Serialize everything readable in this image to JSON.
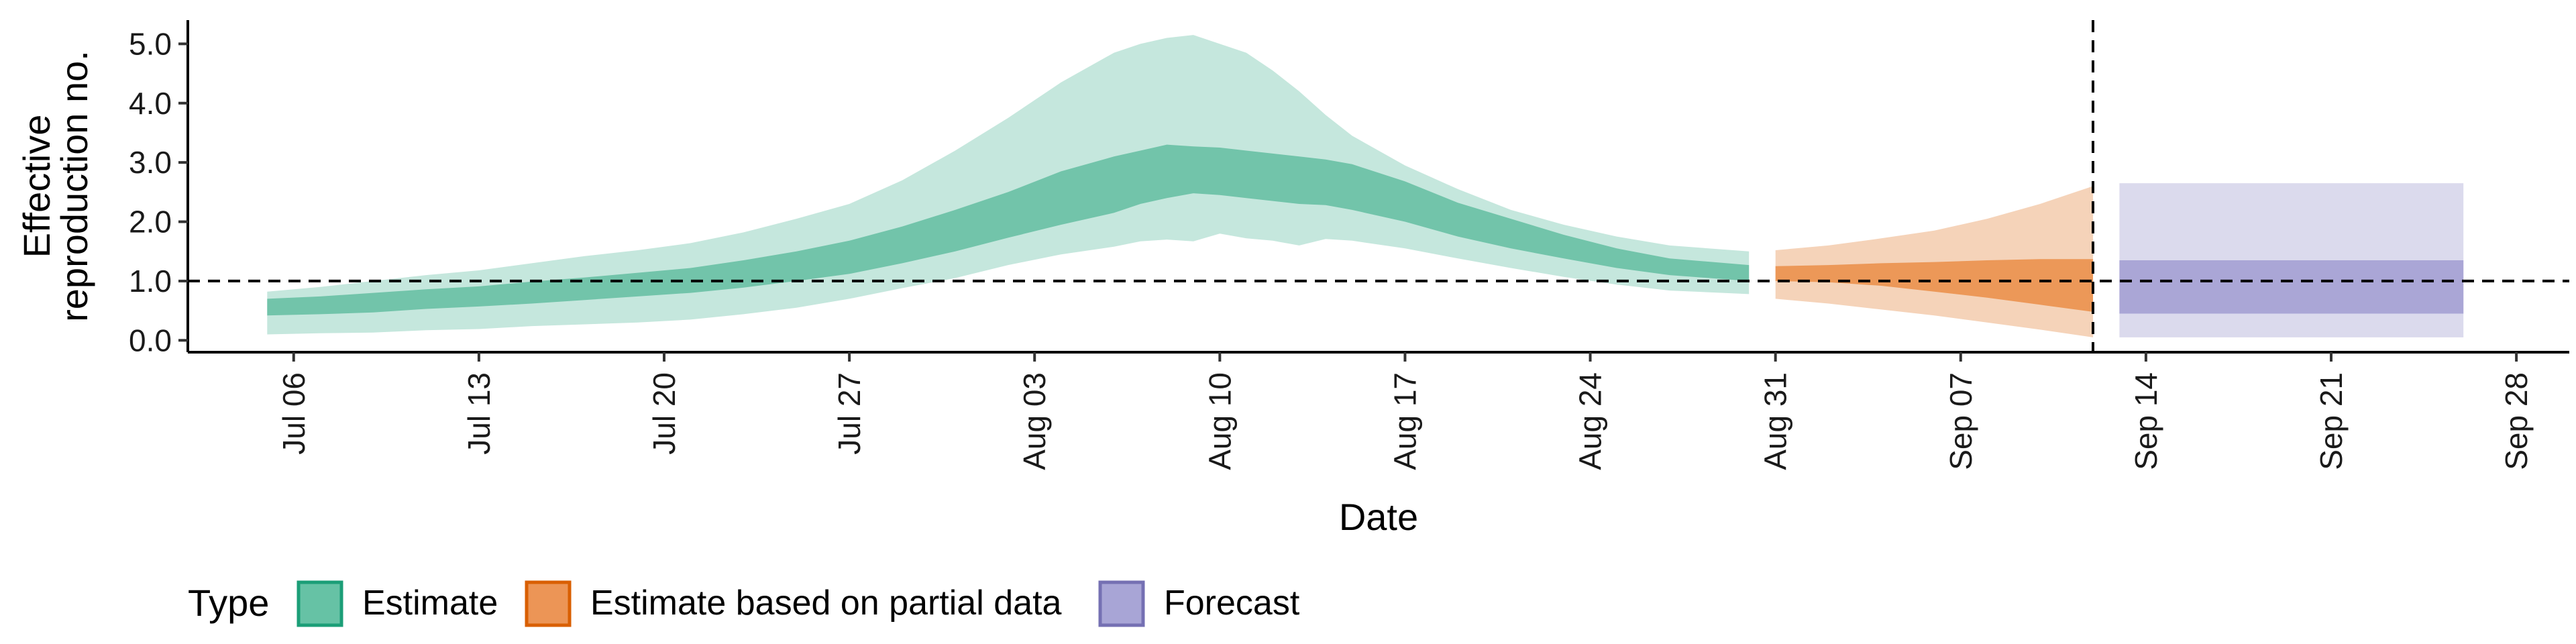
{
  "chart_data": {
    "type": "area",
    "xlabel": "Date",
    "ylabel": [
      "Effective",
      "reproduction no."
    ],
    "ylim": [
      -0.2,
      5.4
    ],
    "xlim": [
      "2020-07-02",
      "2020-09-30"
    ],
    "x_ticks": [
      {
        "date": "2020-07-06",
        "label": "Jul 06"
      },
      {
        "date": "2020-07-13",
        "label": "Jul 13"
      },
      {
        "date": "2020-07-20",
        "label": "Jul 20"
      },
      {
        "date": "2020-07-27",
        "label": "Jul 27"
      },
      {
        "date": "2020-08-03",
        "label": "Aug 03"
      },
      {
        "date": "2020-08-10",
        "label": "Aug 10"
      },
      {
        "date": "2020-08-17",
        "label": "Aug 17"
      },
      {
        "date": "2020-08-24",
        "label": "Aug 24"
      },
      {
        "date": "2020-08-31",
        "label": "Aug 31"
      },
      {
        "date": "2020-09-07",
        "label": "Sep 07"
      },
      {
        "date": "2020-09-14",
        "label": "Sep 14"
      },
      {
        "date": "2020-09-21",
        "label": "Sep 21"
      },
      {
        "date": "2020-09-28",
        "label": "Sep 28"
      }
    ],
    "y_ticks": [
      {
        "value": 0,
        "label": "0.0"
      },
      {
        "value": 1,
        "label": "1.0"
      },
      {
        "value": 2,
        "label": "2.0"
      },
      {
        "value": 3,
        "label": "3.0"
      },
      {
        "value": 4,
        "label": "4.0"
      },
      {
        "value": 5,
        "label": "5.0"
      }
    ],
    "reference_line_y": 1.0,
    "reference_line_date": "2020-09-12",
    "grid": false,
    "legend": {
      "title": "Type",
      "position": "bottom",
      "items": [
        {
          "label": "Estimate",
          "fill": "#66c2a5",
          "border": "#1b9e77"
        },
        {
          "label": "Estimate based on partial data",
          "fill": "#ec9556",
          "border": "#d95f02"
        },
        {
          "label": "Forecast",
          "fill": "#a8a5d6",
          "border": "#7570b3"
        }
      ]
    },
    "series": [
      {
        "name": "Estimate",
        "color": "#1b9e77",
        "x": [
          "2020-07-05",
          "2020-07-07",
          "2020-07-09",
          "2020-07-11",
          "2020-07-13",
          "2020-07-15",
          "2020-07-17",
          "2020-07-19",
          "2020-07-21",
          "2020-07-23",
          "2020-07-25",
          "2020-07-27",
          "2020-07-29",
          "2020-07-31",
          "2020-08-02",
          "2020-08-04",
          "2020-08-06",
          "2020-08-07",
          "2020-08-08",
          "2020-08-09",
          "2020-08-10",
          "2020-08-11",
          "2020-08-12",
          "2020-08-13",
          "2020-08-14",
          "2020-08-15",
          "2020-08-17",
          "2020-08-19",
          "2020-08-21",
          "2020-08-23",
          "2020-08-25",
          "2020-08-27",
          "2020-08-30"
        ],
        "outer_lower": [
          0.1,
          0.12,
          0.13,
          0.17,
          0.19,
          0.24,
          0.27,
          0.3,
          0.35,
          0.44,
          0.55,
          0.7,
          0.88,
          1.05,
          1.27,
          1.45,
          1.58,
          1.67,
          1.7,
          1.67,
          1.8,
          1.72,
          1.68,
          1.6,
          1.71,
          1.68,
          1.55,
          1.38,
          1.22,
          1.07,
          0.94,
          0.84,
          0.78
        ],
        "outer_upper": [
          0.82,
          0.9,
          1.0,
          1.1,
          1.18,
          1.3,
          1.42,
          1.52,
          1.64,
          1.82,
          2.05,
          2.3,
          2.7,
          3.2,
          3.75,
          4.35,
          4.85,
          5.0,
          5.1,
          5.15,
          5.0,
          4.85,
          4.55,
          4.2,
          3.8,
          3.45,
          2.95,
          2.55,
          2.2,
          1.95,
          1.75,
          1.6,
          1.5
        ],
        "inner_lower": [
          0.42,
          0.44,
          0.47,
          0.53,
          0.57,
          0.62,
          0.68,
          0.74,
          0.8,
          0.89,
          1.0,
          1.12,
          1.3,
          1.5,
          1.73,
          1.95,
          2.15,
          2.3,
          2.4,
          2.48,
          2.45,
          2.4,
          2.35,
          2.3,
          2.28,
          2.2,
          2.0,
          1.75,
          1.55,
          1.38,
          1.22,
          1.1,
          1.0
        ],
        "inner_upper": [
          0.7,
          0.74,
          0.8,
          0.86,
          0.91,
          0.99,
          1.06,
          1.14,
          1.22,
          1.35,
          1.5,
          1.68,
          1.92,
          2.2,
          2.5,
          2.85,
          3.1,
          3.2,
          3.3,
          3.27,
          3.25,
          3.2,
          3.15,
          3.1,
          3.05,
          2.97,
          2.68,
          2.32,
          2.05,
          1.78,
          1.55,
          1.38,
          1.27
        ]
      },
      {
        "name": "Estimate based on partial data",
        "color": "#d95f02",
        "x": [
          "2020-08-31",
          "2020-09-02",
          "2020-09-04",
          "2020-09-06",
          "2020-09-08",
          "2020-09-10",
          "2020-09-12"
        ],
        "outer_lower": [
          0.7,
          0.62,
          0.52,
          0.42,
          0.3,
          0.18,
          0.05
        ],
        "outer_upper": [
          1.52,
          1.6,
          1.72,
          1.85,
          2.05,
          2.3,
          2.6
        ],
        "inner_lower": [
          1.0,
          0.98,
          0.92,
          0.82,
          0.72,
          0.6,
          0.48
        ],
        "inner_upper": [
          1.25,
          1.27,
          1.3,
          1.32,
          1.35,
          1.37,
          1.37
        ]
      },
      {
        "name": "Forecast",
        "color": "#7570b3",
        "x": [
          "2020-09-13",
          "2020-09-26"
        ],
        "outer_lower": [
          0.05,
          0.05
        ],
        "outer_upper": [
          2.65,
          2.65
        ],
        "inner_lower": [
          0.45,
          0.45
        ],
        "inner_upper": [
          1.35,
          1.35
        ]
      }
    ]
  }
}
